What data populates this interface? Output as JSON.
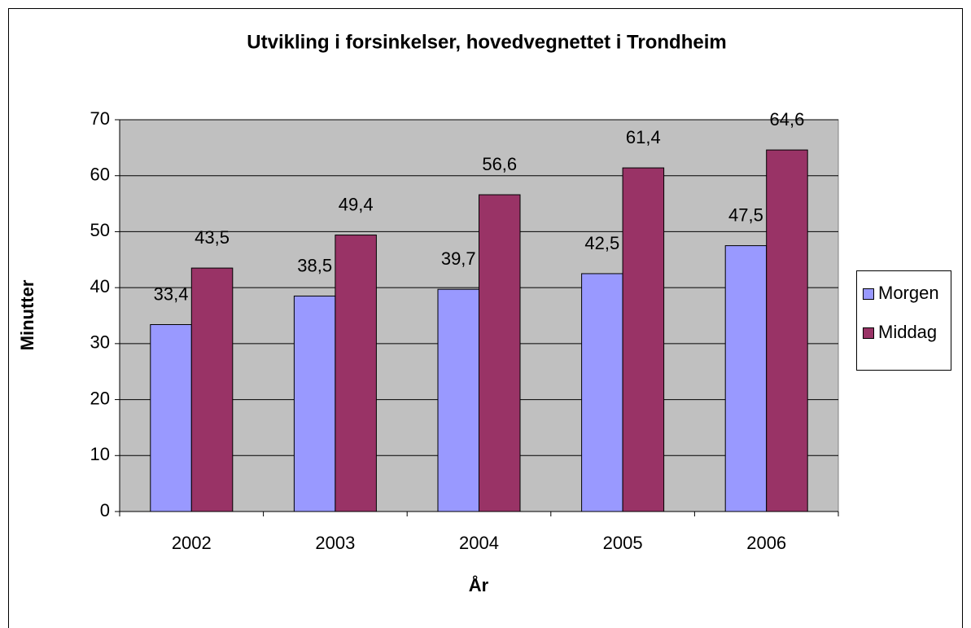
{
  "chart_data": {
    "type": "bar",
    "title": "Utvikling i forsinkelser, hovedvegnettet i Trondheim",
    "xlabel": "År",
    "ylabel": "Minutter",
    "categories": [
      "2002",
      "2003",
      "2004",
      "2005",
      "2006"
    ],
    "series": [
      {
        "name": "Morgen",
        "color": "#9999ff",
        "values": [
          33.4,
          38.5,
          39.7,
          42.5,
          47.5
        ],
        "value_labels": [
          "33,4",
          "38,5",
          "39,7",
          "42,5",
          "47,5"
        ]
      },
      {
        "name": "Middag",
        "color": "#993366",
        "values": [
          43.5,
          49.4,
          56.6,
          61.4,
          64.6
        ],
        "value_labels": [
          "43,5",
          "49,4",
          "56,6",
          "61,4",
          "64,6"
        ]
      }
    ],
    "ylim": [
      0,
      70
    ],
    "yticks": [
      0,
      10,
      20,
      30,
      40,
      50,
      60,
      70
    ],
    "grid": true,
    "legend": "right"
  }
}
